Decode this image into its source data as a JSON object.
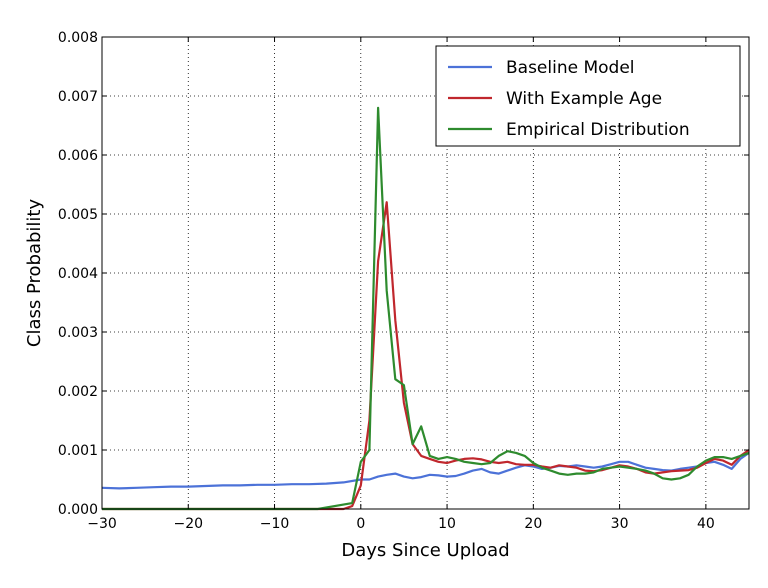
{
  "chart_data": {
    "type": "line",
    "xlabel": "Days Since Upload",
    "ylabel": "Class Probability",
    "xlim": [
      -30,
      45
    ],
    "ylim": [
      0,
      0.008
    ],
    "xticks": [
      -30,
      -20,
      -10,
      0,
      10,
      20,
      30,
      40
    ],
    "xtick_labels": [
      "−30",
      "−20",
      "−10",
      "0",
      "10",
      "20",
      "30",
      "40"
    ],
    "yticks": [
      0,
      0.001,
      0.002,
      0.003,
      0.004,
      0.005,
      0.006,
      0.007,
      0.008
    ],
    "ytick_labels": [
      "0.000",
      "0.001",
      "0.002",
      "0.003",
      "0.004",
      "0.005",
      "0.006",
      "0.007",
      "0.008"
    ],
    "grid": true,
    "legend_position": "top-right",
    "series": [
      {
        "name": "Baseline Model",
        "color": "#4c72d8",
        "x": [
          -30,
          -28,
          -26,
          -24,
          -22,
          -20,
          -18,
          -16,
          -14,
          -12,
          -10,
          -8,
          -6,
          -4,
          -2,
          0,
          1,
          2,
          3,
          4,
          5,
          6,
          7,
          8,
          9,
          10,
          11,
          12,
          13,
          14,
          15,
          16,
          17,
          18,
          19,
          20,
          21,
          22,
          23,
          24,
          25,
          26,
          27,
          28,
          29,
          30,
          31,
          32,
          33,
          34,
          35,
          36,
          37,
          38,
          39,
          40,
          41,
          42,
          43,
          44,
          45
        ],
        "y": [
          0.00036,
          0.00035,
          0.00036,
          0.00037,
          0.00038,
          0.00038,
          0.00039,
          0.0004,
          0.0004,
          0.00041,
          0.00041,
          0.00042,
          0.00042,
          0.00043,
          0.00045,
          0.0005,
          0.0005,
          0.00055,
          0.00058,
          0.0006,
          0.00055,
          0.00052,
          0.00054,
          0.00058,
          0.00057,
          0.00055,
          0.00056,
          0.0006,
          0.00065,
          0.00068,
          0.00062,
          0.0006,
          0.00065,
          0.0007,
          0.00074,
          0.00072,
          0.00068,
          0.0007,
          0.00073,
          0.00072,
          0.00074,
          0.00072,
          0.0007,
          0.00072,
          0.00076,
          0.0008,
          0.0008,
          0.00075,
          0.0007,
          0.00068,
          0.00066,
          0.00065,
          0.00068,
          0.0007,
          0.00072,
          0.00078,
          0.0008,
          0.00075,
          0.00068,
          0.00085,
          0.00095
        ]
      },
      {
        "name": "With Example Age",
        "color": "#c0272d",
        "x": [
          -30,
          -25,
          -20,
          -15,
          -10,
          -5,
          -2,
          -1,
          0,
          1,
          2,
          3,
          4,
          5,
          6,
          7,
          8,
          9,
          10,
          11,
          12,
          13,
          14,
          15,
          16,
          17,
          18,
          19,
          20,
          21,
          22,
          23,
          24,
          25,
          26,
          27,
          28,
          29,
          30,
          31,
          32,
          33,
          34,
          35,
          36,
          37,
          38,
          39,
          40,
          41,
          42,
          43,
          44,
          45
        ],
        "y": [
          0,
          0,
          0,
          0,
          0,
          0,
          0,
          5e-05,
          0.0004,
          0.0015,
          0.0042,
          0.0052,
          0.0032,
          0.0018,
          0.0011,
          0.0009,
          0.00085,
          0.0008,
          0.00078,
          0.00082,
          0.00085,
          0.00086,
          0.00084,
          0.0008,
          0.00078,
          0.0008,
          0.00076,
          0.00075,
          0.00075,
          0.00072,
          0.0007,
          0.00074,
          0.00072,
          0.0007,
          0.00065,
          0.00064,
          0.00066,
          0.0007,
          0.00074,
          0.00072,
          0.00068,
          0.00062,
          0.0006,
          0.00062,
          0.00064,
          0.00065,
          0.00066,
          0.0007,
          0.00078,
          0.00085,
          0.00082,
          0.00075,
          0.0009,
          0.001
        ]
      },
      {
        "name": "Empirical Distribution",
        "color": "#2e8b2e",
        "x": [
          -30,
          -25,
          -20,
          -15,
          -10,
          -5,
          -1,
          0,
          1,
          2,
          3,
          4,
          5,
          6,
          7,
          8,
          9,
          10,
          11,
          12,
          13,
          14,
          15,
          16,
          17,
          18,
          19,
          20,
          21,
          22,
          23,
          24,
          25,
          26,
          27,
          28,
          29,
          30,
          31,
          32,
          33,
          34,
          35,
          36,
          37,
          38,
          39,
          40,
          41,
          42,
          43,
          44,
          45
        ],
        "y": [
          0,
          0,
          0,
          0,
          0,
          0,
          0.0001,
          0.0008,
          0.001,
          0.0068,
          0.0037,
          0.0022,
          0.0021,
          0.0011,
          0.0014,
          0.0009,
          0.00085,
          0.00088,
          0.00085,
          0.0008,
          0.00078,
          0.00076,
          0.00078,
          0.0009,
          0.00098,
          0.00095,
          0.0009,
          0.00078,
          0.0007,
          0.00065,
          0.0006,
          0.00058,
          0.0006,
          0.0006,
          0.00062,
          0.00068,
          0.0007,
          0.00072,
          0.0007,
          0.00068,
          0.00065,
          0.0006,
          0.00052,
          0.0005,
          0.00052,
          0.00058,
          0.00072,
          0.00082,
          0.00088,
          0.00088,
          0.00085,
          0.0009,
          0.00095
        ]
      }
    ]
  }
}
